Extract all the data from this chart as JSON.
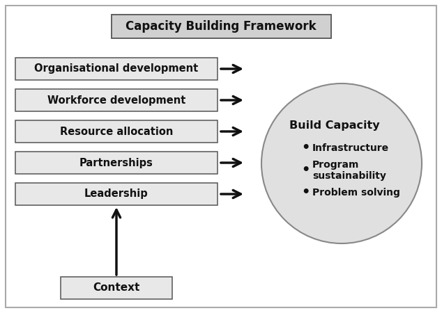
{
  "title": "Capacity Building Framework",
  "boxes": [
    "Organisational development",
    "Workforce development",
    "Resource allocation",
    "Partnerships",
    "Leadership"
  ],
  "context_label": "Context",
  "circle_title": "Build Capacity",
  "circle_bullets": [
    "Infrastructure",
    "Program\nsustainability",
    "Problem solving"
  ],
  "bg_color": "#ffffff",
  "box_facecolor": "#e8e8e8",
  "box_edgecolor": "#555555",
  "circle_facecolor": "#e0e0e0",
  "circle_edgecolor": "#888888",
  "title_box_facecolor": "#d0d0d0",
  "title_box_edgecolor": "#555555",
  "outer_border_color": "#aaaaaa",
  "text_color": "#111111",
  "arrow_color": "#111111",
  "fig_w": 6.34,
  "fig_h": 4.5,
  "dpi": 100
}
